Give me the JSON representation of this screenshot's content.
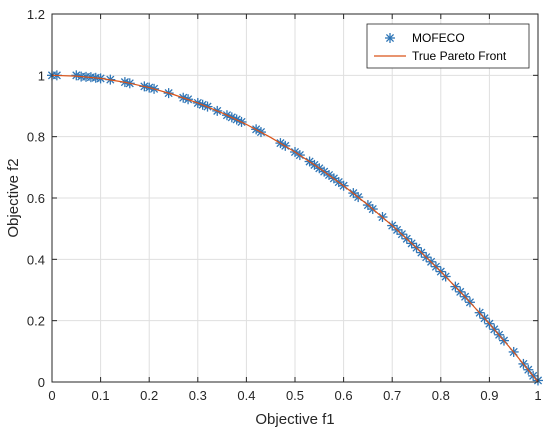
{
  "chart_data": {
    "type": "scatter",
    "xlabel": "Objective f1",
    "ylabel": "Objective f2",
    "xlim": [
      0,
      1
    ],
    "ylim": [
      0,
      1.2
    ],
    "xticks": [
      "0",
      "0.1",
      "0.2",
      "0.3",
      "0.4",
      "0.5",
      "0.6",
      "0.7",
      "0.8",
      "0.9",
      "1"
    ],
    "yticks": [
      "0",
      "0.2",
      "0.4",
      "0.6",
      "0.8",
      "1",
      "1.2"
    ],
    "grid": true,
    "legend_position": "top-right",
    "series": [
      {
        "name": "MOFECO",
        "marker": "asterisk",
        "color": "#2e75b6",
        "x": [
          0.0,
          0.01,
          0.05,
          0.06,
          0.07,
          0.08,
          0.09,
          0.1,
          0.12,
          0.15,
          0.16,
          0.19,
          0.2,
          0.21,
          0.24,
          0.27,
          0.28,
          0.3,
          0.31,
          0.32,
          0.34,
          0.36,
          0.37,
          0.38,
          0.39,
          0.42,
          0.43,
          0.47,
          0.48,
          0.5,
          0.51,
          0.53,
          0.54,
          0.55,
          0.56,
          0.57,
          0.58,
          0.59,
          0.6,
          0.62,
          0.63,
          0.65,
          0.66,
          0.68,
          0.7,
          0.71,
          0.72,
          0.73,
          0.74,
          0.75,
          0.76,
          0.77,
          0.78,
          0.79,
          0.8,
          0.81,
          0.83,
          0.84,
          0.85,
          0.86,
          0.88,
          0.89,
          0.9,
          0.91,
          0.92,
          0.93,
          0.95,
          0.97,
          0.98,
          0.99,
          1.0
        ],
        "y": [
          1.0,
          1.0,
          1.0,
          0.996,
          0.995,
          0.994,
          0.992,
          0.99,
          0.986,
          0.978,
          0.974,
          0.964,
          0.96,
          0.956,
          0.942,
          0.927,
          0.922,
          0.91,
          0.904,
          0.898,
          0.884,
          0.87,
          0.863,
          0.856,
          0.848,
          0.824,
          0.815,
          0.779,
          0.77,
          0.75,
          0.74,
          0.719,
          0.708,
          0.697,
          0.686,
          0.675,
          0.664,
          0.652,
          0.64,
          0.616,
          0.603,
          0.577,
          0.564,
          0.538,
          0.51,
          0.496,
          0.482,
          0.467,
          0.452,
          0.438,
          0.422,
          0.407,
          0.392,
          0.376,
          0.36,
          0.344,
          0.311,
          0.294,
          0.278,
          0.26,
          0.226,
          0.208,
          0.19,
          0.172,
          0.154,
          0.135,
          0.098,
          0.059,
          0.04,
          0.02,
          0.005
        ]
      },
      {
        "name": "True Pareto Front",
        "marker": "line",
        "color": "#d95319",
        "x": [
          0.0,
          0.05,
          0.1,
          0.15,
          0.2,
          0.25,
          0.3,
          0.35,
          0.4,
          0.45,
          0.5,
          0.55,
          0.6,
          0.65,
          0.7,
          0.75,
          0.8,
          0.85,
          0.9,
          0.95,
          1.0
        ],
        "y": [
          1.0,
          0.9975,
          0.99,
          0.9775,
          0.96,
          0.9375,
          0.91,
          0.8775,
          0.84,
          0.7975,
          0.75,
          0.6975,
          0.64,
          0.5775,
          0.51,
          0.4375,
          0.36,
          0.2775,
          0.19,
          0.0975,
          0.0
        ]
      }
    ]
  }
}
